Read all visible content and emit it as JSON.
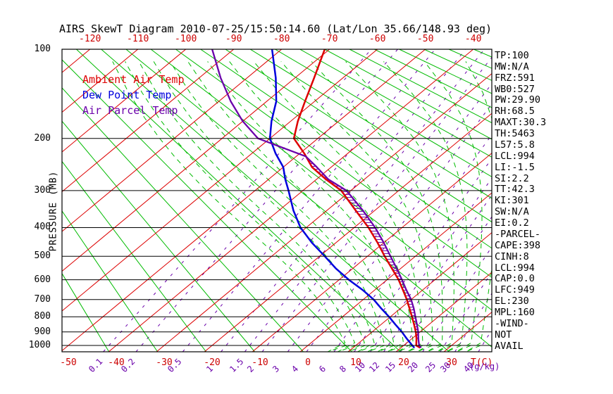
{
  "title": "AIRS SkewT Diagram 2010-07-25/15:50:14.60 (Lat/Lon 35.66/148.93 deg)",
  "colors": {
    "ambient": "#dd0000",
    "dewpoint": "#0000dd",
    "parcel": "#6a00aa",
    "isotherm": "#dd0000",
    "dry_adiabat": "#00bb00",
    "moist_adiabat": "#00bb00",
    "mixing_ratio": "#6a00aa",
    "frame": "#000000"
  },
  "legend": [
    {
      "label": "Ambient Air Temp",
      "color": "#dd0000"
    },
    {
      "label": "Dew Point Temp",
      "color": "#0000dd"
    },
    {
      "label": "Air Parcel Temp",
      "color": "#6a00aa"
    }
  ],
  "stats_panel": [
    "TP:100",
    "MW:N/A",
    "FRZ:591",
    "WB0:527",
    "PW:29.90",
    "RH:68.5",
    "MAXT:30.3",
    "TH:5463",
    "L57:5.8",
    "LCL:994",
    "LI:-1.5",
    "SI:2.2",
    "TT:42.3",
    "KI:301",
    "SW:N/A",
    "EI:0.2",
    "-PARCEL-",
    "CAPE:398",
    "CINH:8",
    "LCL:994",
    "CAP:0.0",
    "LFC:949",
    "EL:230",
    "MPL:160",
    "-WIND-",
    "NOT",
    "AVAIL"
  ],
  "chart_data": {
    "type": "line",
    "subtype": "skewt-logp",
    "title": "AIRS SkewT Diagram 2010-07-25/15:50:14.60 (Lat/Lon 35.66/148.93 deg)",
    "y_axis": {
      "label": "PRESSURE (MB)",
      "scale": "log",
      "range": [
        100,
        1050
      ],
      "ticks": [
        100,
        200,
        300,
        400,
        500,
        600,
        700,
        800,
        900,
        1000
      ]
    },
    "x_axis": {
      "label": "T(C)",
      "top_ticks": [
        -120,
        -110,
        -100,
        -90,
        -80,
        -70,
        -60,
        -50,
        -40
      ],
      "bottom_ticks": [
        -50,
        -40,
        -30,
        -20,
        -10,
        0,
        10,
        20,
        30
      ]
    },
    "grid": {
      "isotherms_c": [
        -130,
        -120,
        -110,
        -100,
        -90,
        -80,
        -70,
        -60,
        -50,
        -40,
        -30,
        -20,
        -10,
        0,
        10,
        20,
        30,
        40,
        50
      ],
      "dry_adiabats_k": [
        210,
        220,
        230,
        240,
        250,
        260,
        270,
        280,
        290,
        300,
        310,
        320,
        330,
        340,
        350,
        360,
        370,
        380,
        390,
        400,
        410,
        420,
        430,
        440,
        450,
        460,
        470,
        480,
        490,
        500
      ],
      "moist_adiabats_c": [
        8,
        10,
        12,
        14,
        16,
        18,
        20,
        22,
        24,
        26,
        28,
        30,
        32,
        34,
        36
      ],
      "mixing_ratio_gkg": [
        0.1,
        0.2,
        0.5,
        1,
        1.5,
        2,
        3,
        4,
        6,
        8,
        10,
        12,
        15,
        20,
        25,
        30,
        40
      ],
      "mixing_ratio_unit": "(g/kg)"
    },
    "series": [
      {
        "name": "ambient_temp",
        "color": "#dd0000",
        "points_p_t": [
          [
            100,
            -71
          ],
          [
            125,
            -66
          ],
          [
            150,
            -62
          ],
          [
            175,
            -58.5
          ],
          [
            200,
            -55
          ],
          [
            225,
            -49
          ],
          [
            250,
            -44
          ],
          [
            275,
            -38
          ],
          [
            300,
            -32
          ],
          [
            350,
            -24
          ],
          [
            400,
            -17
          ],
          [
            450,
            -11.3
          ],
          [
            500,
            -6.4
          ],
          [
            550,
            -1.8
          ],
          [
            600,
            2.4
          ],
          [
            650,
            5.9
          ],
          [
            700,
            9.1
          ],
          [
            750,
            11.9
          ],
          [
            800,
            14.5
          ],
          [
            850,
            16.9
          ],
          [
            900,
            19.1
          ],
          [
            950,
            21.0
          ],
          [
            1000,
            22.6
          ],
          [
            1018,
            24.0
          ]
        ]
      },
      {
        "name": "dew_point",
        "color": "#0000dd",
        "points_p_t": [
          [
            100,
            -82
          ],
          [
            125,
            -74
          ],
          [
            150,
            -68
          ],
          [
            175,
            -64
          ],
          [
            200,
            -60
          ],
          [
            225,
            -55
          ],
          [
            250,
            -50
          ],
          [
            275,
            -46.5
          ],
          [
            300,
            -43
          ],
          [
            350,
            -37
          ],
          [
            400,
            -31.2
          ],
          [
            450,
            -25
          ],
          [
            500,
            -18.9
          ],
          [
            550,
            -13.5
          ],
          [
            600,
            -8
          ],
          [
            650,
            -2.5
          ],
          [
            700,
            2.2
          ],
          [
            750,
            6
          ],
          [
            800,
            9.7
          ],
          [
            850,
            13
          ],
          [
            900,
            16.2
          ],
          [
            950,
            19
          ],
          [
            1000,
            21.8
          ],
          [
            1018,
            22.8
          ]
        ]
      },
      {
        "name": "air_parcel",
        "color": "#6a00aa",
        "points_p_t": [
          [
            100,
            -94.5
          ],
          [
            125,
            -85.5
          ],
          [
            150,
            -77.5
          ],
          [
            175,
            -70
          ],
          [
            200,
            -62.5
          ],
          [
            230,
            -48
          ],
          [
            250,
            -43
          ],
          [
            275,
            -37.5
          ],
          [
            300,
            -30.9
          ],
          [
            350,
            -22.5
          ],
          [
            400,
            -15.6
          ],
          [
            450,
            -10
          ],
          [
            500,
            -5.2
          ],
          [
            550,
            -0.8
          ],
          [
            600,
            3.1
          ],
          [
            650,
            6.6
          ],
          [
            700,
            10.0
          ],
          [
            750,
            12.8
          ],
          [
            800,
            15.2
          ],
          [
            850,
            17.5
          ],
          [
            900,
            19.6
          ],
          [
            950,
            21.4
          ],
          [
            1000,
            23.2
          ],
          [
            1018,
            24.2
          ]
        ]
      }
    ],
    "cape_hatch": {
      "from_mb": 944,
      "to_mb": 232,
      "color": "#6a00aa"
    }
  }
}
